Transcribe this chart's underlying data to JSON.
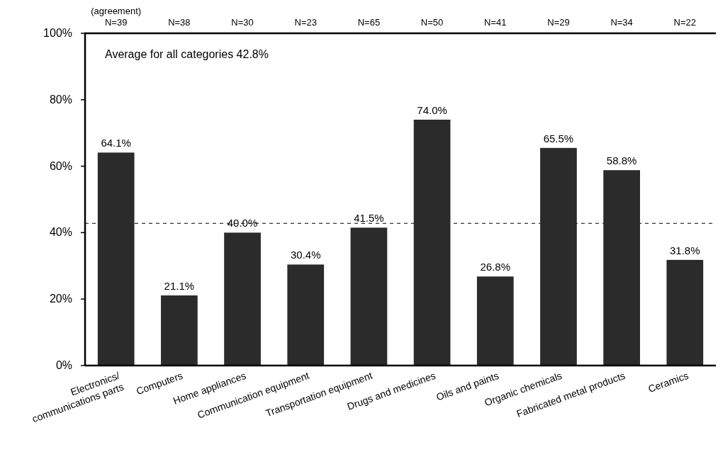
{
  "chart_data": {
    "type": "bar",
    "categories": [
      "Electronics/\ncommunications parts",
      "Computers",
      "Home appliances",
      "Communication equipment",
      "Transportation equipment",
      "Drugs and medicines",
      "Oils and paints",
      "Organic chemicals",
      "Fabricated metal products",
      "Ceramics"
    ],
    "values": [
      64.1,
      21.1,
      40.0,
      30.4,
      41.5,
      74.0,
      26.8,
      65.5,
      58.8,
      31.8
    ],
    "value_labels": [
      "64.1%",
      "21.1%",
      "40.0%",
      "30.4%",
      "41.5%",
      "74.0%",
      "26.8%",
      "65.5%",
      "58.8%",
      "31.8%"
    ],
    "color": "#2b2b2b",
    "ylim": [
      0,
      100
    ],
    "yticks": [
      {
        "value": 0,
        "label": "0%"
      },
      {
        "value": 20,
        "label": "20%"
      },
      {
        "value": 40,
        "label": "40%"
      },
      {
        "value": 60,
        "label": "60%"
      },
      {
        "value": 80,
        "label": "80%"
      },
      {
        "value": 100,
        "label": "100%"
      }
    ],
    "ref_lines": [
      {
        "axis": "y",
        "value": 42.8,
        "label": "Average for all categories 42.8%",
        "line_style": "dashed"
      }
    ],
    "annotations": [
      "(agreement)",
      "N=39",
      "N=38",
      "N=30",
      "N=23",
      "N=65",
      "N=50",
      "N=41",
      "N=29",
      "N=34",
      "N=22"
    ]
  }
}
